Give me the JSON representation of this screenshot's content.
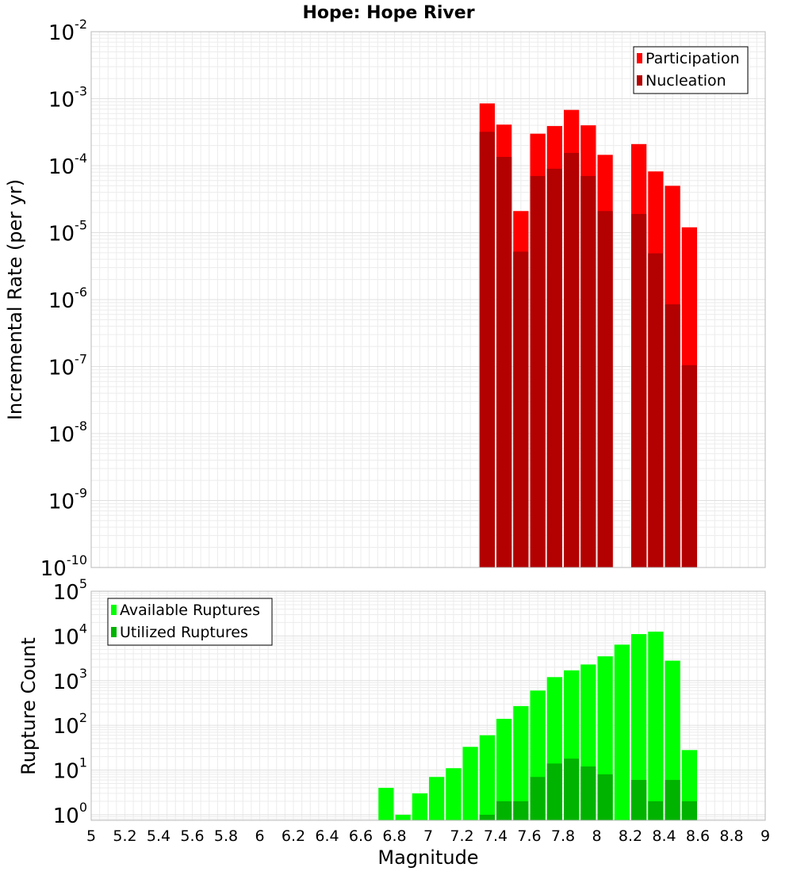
{
  "chart_data": [
    {
      "type": "bar",
      "title": "Hope: Hope River",
      "ylabel": "Incremental Rate (per yr)",
      "xlabel": "",
      "xlim": [
        5,
        9
      ],
      "y_scale": "log",
      "ylim": [
        1e-10,
        0.01
      ],
      "y_tick_labels": [
        {
          "base": "10",
          "exp": "-10",
          "value": 1e-10
        },
        {
          "base": "10",
          "exp": "-9",
          "value": 1e-09
        },
        {
          "base": "10",
          "exp": "-8",
          "value": 1e-08
        },
        {
          "base": "10",
          "exp": "-7",
          "value": 1e-07
        },
        {
          "base": "10",
          "exp": "-6",
          "value": 1e-06
        },
        {
          "base": "10",
          "exp": "-5",
          "value": 1e-05
        },
        {
          "base": "10",
          "exp": "-4",
          "value": 0.0001
        },
        {
          "base": "10",
          "exp": "-3",
          "value": 0.001
        },
        {
          "base": "10",
          "exp": "-2",
          "value": 0.01
        }
      ],
      "grid": true,
      "legend_position": "top-right",
      "bar_width": 0.1,
      "x": [
        7.35,
        7.45,
        7.55,
        7.65,
        7.75,
        7.85,
        7.95,
        8.05,
        8.25,
        8.35,
        8.45,
        8.55
      ],
      "series": [
        {
          "name": "Participation",
          "color": "#ff0000",
          "values": [
            0.00085,
            0.00041,
            2.1e-05,
            0.0003,
            0.00039,
            0.00068,
            0.0004,
            0.000145,
            0.00021,
            8.2e-05,
            5e-05,
            1.2e-05
          ]
        },
        {
          "name": "Nucleation",
          "color": "#b30000",
          "values": [
            0.00032,
            0.000135,
            5.2e-06,
            7e-05,
            9e-05,
            0.000155,
            7e-05,
            2.1e-05,
            1.9e-05,
            4.9e-06,
            8.5e-07,
            1.05e-07
          ]
        }
      ]
    },
    {
      "type": "bar",
      "title": "",
      "ylabel": "Rupture Count",
      "xlabel": "Magnitude",
      "xlim": [
        5,
        9
      ],
      "y_scale": "log",
      "ylim": [
        0.75,
        100000.0
      ],
      "y_tick_labels": [
        {
          "base": "10",
          "exp": "0",
          "value": 1
        },
        {
          "base": "10",
          "exp": "1",
          "value": 10
        },
        {
          "base": "10",
          "exp": "2",
          "value": 100
        },
        {
          "base": "10",
          "exp": "3",
          "value": 1000
        },
        {
          "base": "10",
          "exp": "4",
          "value": 10000
        },
        {
          "base": "10",
          "exp": "5",
          "value": 100000
        }
      ],
      "x_ticks": [
        "5",
        "5.2",
        "5.4",
        "5.6",
        "5.8",
        "6",
        "6.2",
        "6.4",
        "6.6",
        "6.8",
        "7",
        "7.2",
        "7.4",
        "7.6",
        "7.8",
        "8",
        "8.2",
        "8.4",
        "8.6",
        "8.8",
        "9"
      ],
      "grid": true,
      "legend_position": "top-left",
      "bar_width": 0.1,
      "x": [
        6.75,
        6.85,
        6.95,
        7.05,
        7.15,
        7.25,
        7.35,
        7.45,
        7.55,
        7.65,
        7.75,
        7.85,
        7.95,
        8.05,
        8.15,
        8.25,
        8.35,
        8.45,
        8.55
      ],
      "series": [
        {
          "name": "Available Ruptures",
          "color": "#00ff00",
          "values": [
            4,
            1,
            3,
            7,
            11,
            33,
            60,
            140,
            270,
            600,
            1200,
            1700,
            2300,
            3500,
            6400,
            11000,
            12500,
            2800,
            28
          ]
        },
        {
          "name": "Utilized Ruptures",
          "color": "#00b300",
          "values": [
            0,
            0,
            0,
            0,
            0,
            0,
            1,
            2,
            2,
            7,
            14,
            18,
            12,
            8,
            0,
            6,
            2,
            6,
            2
          ]
        }
      ]
    }
  ]
}
